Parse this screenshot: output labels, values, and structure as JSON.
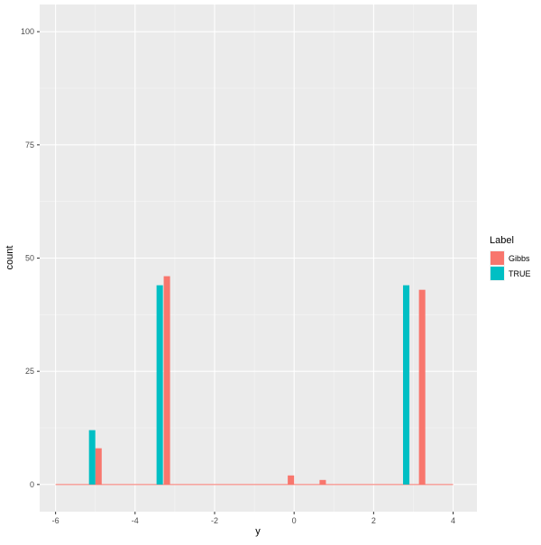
{
  "chart_data": {
    "type": "bar",
    "title": "",
    "xlabel": "y",
    "ylabel": "count",
    "xlim": [
      -6.4,
      4.6
    ],
    "ylim": [
      -6,
      106
    ],
    "x_ticks": [
      -6,
      -4,
      -2,
      0,
      2,
      4
    ],
    "y_ticks": [
      0,
      25,
      50,
      75,
      100
    ],
    "grid": true,
    "bar_width": 0.16,
    "legend": {
      "title": "Label",
      "placement": "right",
      "entries": [
        {
          "name": "Gibbs",
          "color": "#F8766D"
        },
        {
          "name": "TRUE",
          "color": "#00BFC4"
        }
      ]
    },
    "series": [
      {
        "name": "Gibbs",
        "color": "#F8766D",
        "points": [
          {
            "x": -4.92,
            "y": 8
          },
          {
            "x": -3.2,
            "y": 46
          },
          {
            "x": -0.08,
            "y": 2
          },
          {
            "x": 0.72,
            "y": 1
          },
          {
            "x": 3.22,
            "y": 43
          }
        ],
        "baseline_range": [
          -6,
          4
        ]
      },
      {
        "name": "TRUE",
        "color": "#00BFC4",
        "points": [
          {
            "x": -5.08,
            "y": 12
          },
          {
            "x": -3.38,
            "y": 44
          },
          {
            "x": 2.82,
            "y": 44
          }
        ]
      }
    ]
  }
}
